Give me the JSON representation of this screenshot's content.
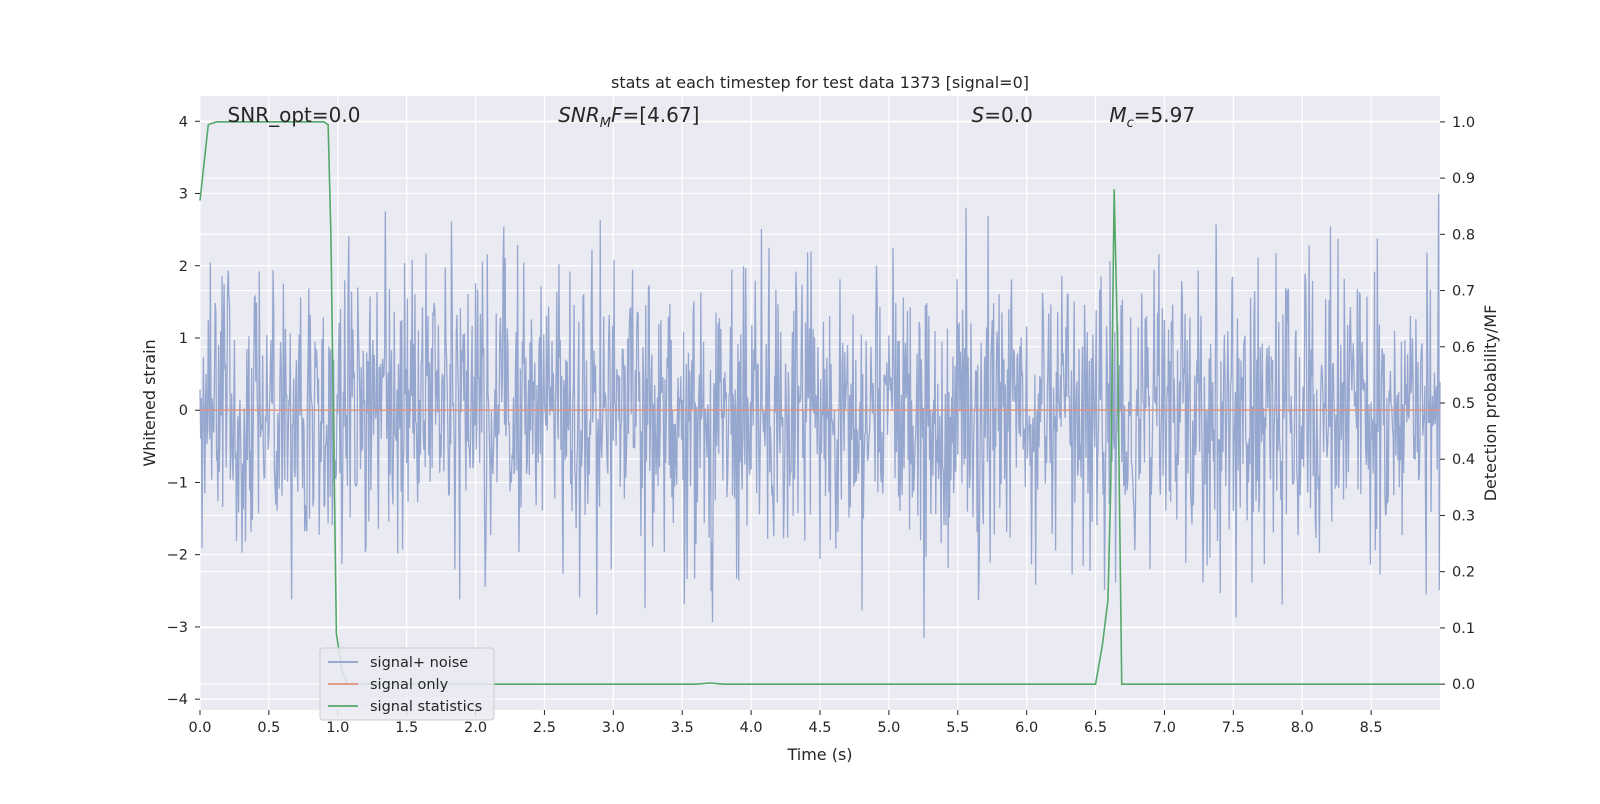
{
  "chart_data": {
    "type": "line",
    "title": "stats at each timestep for test data 1373 [signal=0]",
    "xlabel": "Time (s)",
    "ylabel": "Whitened strain",
    "y2label": "Detection probability/MF",
    "xlim": [
      0.0,
      9.0
    ],
    "ylim": [
      -4.15,
      4.35
    ],
    "y2lim": [
      -0.046,
      1.046
    ],
    "xticks": [
      "0.0",
      "0.5",
      "1.0",
      "1.5",
      "2.0",
      "2.5",
      "3.0",
      "3.5",
      "4.0",
      "4.5",
      "5.0",
      "5.5",
      "6.0",
      "6.5",
      "7.0",
      "7.5",
      "8.0",
      "8.5"
    ],
    "yticks": [
      "4",
      "3",
      "2",
      "1",
      "0",
      "−1",
      "−2",
      "−3",
      "−4"
    ],
    "y2ticks": [
      "1.0",
      "0.9",
      "0.8",
      "0.7",
      "0.6",
      "0.5",
      "0.4",
      "0.3",
      "0.2",
      "0.1",
      "0.0"
    ],
    "grid": true,
    "legend_position": "lower-left",
    "annotations": [
      {
        "kind": "plain",
        "text": "SNR_opt=0.0",
        "x": 0.2
      },
      {
        "kind": "mf",
        "sym": "SNR",
        "sub": "M",
        "after": "F",
        "rest": "=[4.67]",
        "x": 2.6
      },
      {
        "kind": "sym",
        "sym": "S",
        "rest": "=0.0",
        "x": 5.6
      },
      {
        "kind": "sub",
        "sym": "M",
        "sub": "c",
        "rest": "=5.97",
        "x": 6.6
      }
    ],
    "series": [
      {
        "name": "signal+ noise",
        "color": "#8da0cb",
        "kind": "noise",
        "sample_rate": 200,
        "noise_scale": 1.0
      },
      {
        "name": "signal only",
        "color": "#e3917a",
        "kind": "constant",
        "value": 0.0
      },
      {
        "name": "signal statistics",
        "color": "#55a868",
        "axis": "right",
        "x": [
          0.0,
          0.06,
          0.12,
          0.3,
          0.5,
          0.7,
          0.85,
          0.9,
          0.93,
          0.95,
          0.99,
          1.03,
          1.07,
          1.5,
          2.0,
          3.0,
          3.6,
          3.7,
          3.8,
          4.5,
          5.5,
          6.5,
          6.55,
          6.59,
          6.61,
          6.635,
          6.66,
          6.69,
          6.75,
          7.5,
          8.0,
          9.0
        ],
        "y": [
          0.86,
          0.995,
          1.0,
          1.0,
          1.0,
          1.0,
          1.0,
          1.0,
          0.995,
          0.8,
          0.09,
          0.025,
          0.0,
          0.0,
          0.0,
          0.0,
          0.0,
          0.002,
          0.0,
          0.0,
          0.0,
          0.0,
          0.07,
          0.15,
          0.35,
          0.88,
          0.6,
          0.0,
          0.0,
          0.0,
          0.0,
          0.0
        ]
      }
    ]
  }
}
